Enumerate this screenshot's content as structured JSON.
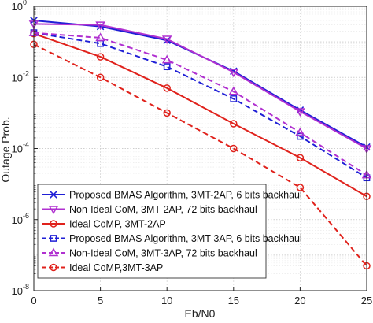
{
  "chart_data": {
    "type": "line",
    "title": "",
    "xlabel": "Eb/N0",
    "ylabel": "Outage Prob.",
    "xlim": [
      0,
      25
    ],
    "ylim": [
      1e-08,
      1
    ],
    "yscale": "log",
    "grid": true,
    "legend_position": "bottom-left",
    "x_ticks": [
      0,
      5,
      10,
      15,
      20,
      25
    ],
    "x_tick_labels": [
      "0",
      "5",
      "10",
      "15",
      "20",
      "25"
    ],
    "y_ticks": [
      1e-08,
      1e-06,
      0.0001,
      0.01,
      1
    ],
    "y_tick_labels": [
      {
        "base": "10",
        "exp": "-8"
      },
      {
        "base": "10",
        "exp": "-6"
      },
      {
        "base": "10",
        "exp": "-4"
      },
      {
        "base": "10",
        "exp": "-2"
      },
      {
        "base": "10",
        "exp": "0"
      }
    ],
    "x": [
      0,
      5,
      10,
      15,
      20,
      25
    ],
    "series": [
      {
        "name": "Proposed BMAS Algorithm, 3MT-2AP, 6 bits backhaul",
        "values": [
          0.4,
          0.27,
          0.11,
          0.015,
          0.0012,
          0.00011
        ],
        "color": "#1f1fd6",
        "dash": "solid",
        "marker": "x"
      },
      {
        "name": "Non-Ideal CoM, 3MT-2AP, 72 bits backhaul",
        "values": [
          0.32,
          0.3,
          0.12,
          0.014,
          0.0011,
          0.0001
        ],
        "color": "#b030d0",
        "dash": "solid",
        "marker": "triangle-down"
      },
      {
        "name": "Ideal CoMP, 3MT-2AP",
        "values": [
          0.17,
          0.038,
          0.005,
          0.0005,
          5.5e-05,
          4.5e-06
        ],
        "color": "#e0221c",
        "dash": "solid",
        "marker": "circle"
      },
      {
        "name": "Proposed BMAS Algorithm, 3MT-3AP, 6 bits backhaul",
        "values": [
          0.18,
          0.09,
          0.02,
          0.0025,
          0.00022,
          1.5e-05
        ],
        "color": "#1f1fd6",
        "dash": "dashed",
        "marker": "square"
      },
      {
        "name": "Non-Ideal CoM, 3MT-3AP, 72 bits backhaul",
        "values": [
          0.18,
          0.13,
          0.031,
          0.004,
          0.00028,
          1.8e-05
        ],
        "color": "#b030d0",
        "dash": "dashed",
        "marker": "triangle-up"
      },
      {
        "name": "Ideal CoMP,3MT-3AP",
        "values": [
          0.085,
          0.01,
          0.001,
          0.0001,
          8e-06,
          5e-08
        ],
        "color": "#e0221c",
        "dash": "dashed",
        "marker": "circle"
      }
    ]
  }
}
